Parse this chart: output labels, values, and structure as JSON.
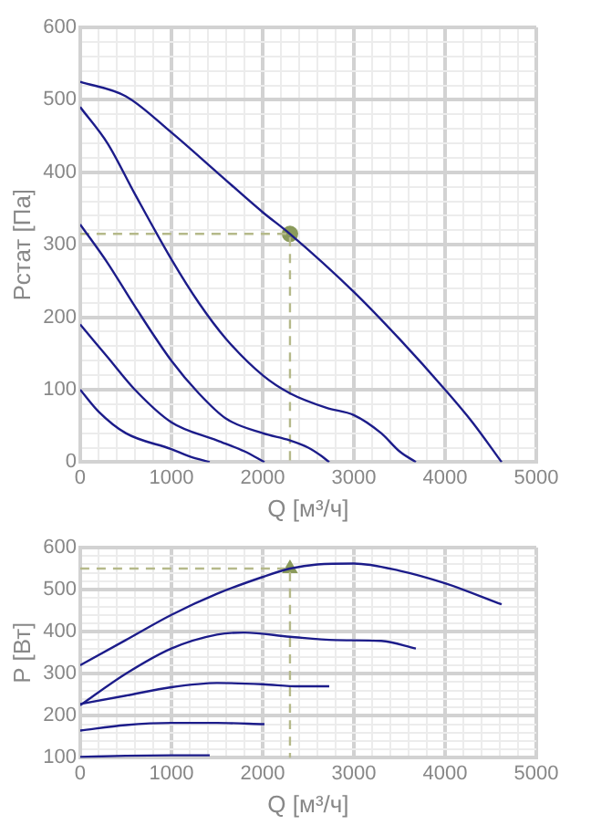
{
  "chart_data": [
    {
      "type": "line",
      "xlabel": "Q [м³/ч]",
      "ylabel": "Рстат [Па]",
      "xlim": [
        0,
        5000
      ],
      "ylim": [
        0,
        600
      ],
      "xticks": [
        0,
        {
          "value": 200,
          "label": null
        },
        {
          "value": 400,
          "label": null
        },
        {
          "value": 600,
          "label": null
        },
        {
          "value": 800,
          "label": null
        },
        1000,
        {
          "value": 1200,
          "label": null
        },
        {
          "value": 1400,
          "label": null
        },
        {
          "value": 1600,
          "label": null
        },
        {
          "value": 1800,
          "label": null
        },
        2000,
        {
          "value": 2200,
          "label": null
        },
        {
          "value": 2400,
          "label": null
        },
        {
          "value": 2600,
          "label": null
        },
        {
          "value": 2800,
          "label": null
        },
        3000,
        {
          "value": 3200,
          "label": null
        },
        {
          "value": 3400,
          "label": null
        },
        {
          "value": 3600,
          "label": null
        },
        {
          "value": 3800,
          "label": null
        },
        4000,
        {
          "value": 4200,
          "label": null
        },
        {
          "value": 4400,
          "label": null
        },
        {
          "value": 4600,
          "label": null
        },
        {
          "value": 4800,
          "label": null
        },
        5000
      ],
      "yticks": [
        0,
        {
          "value": 20,
          "label": null
        },
        {
          "value": 40,
          "label": null
        },
        {
          "value": 60,
          "label": null
        },
        {
          "value": 80,
          "label": null
        },
        100,
        {
          "value": 120,
          "label": null
        },
        {
          "value": 140,
          "label": null
        },
        {
          "value": 160,
          "label": null
        },
        {
          "value": 180,
          "label": null
        },
        200,
        {
          "value": 220,
          "label": null
        },
        {
          "value": 240,
          "label": null
        },
        {
          "value": 260,
          "label": null
        },
        {
          "value": 280,
          "label": null
        },
        300,
        {
          "value": 320,
          "label": null
        },
        {
          "value": 340,
          "label": null
        },
        {
          "value": 360,
          "label": null
        },
        {
          "value": 380,
          "label": null
        },
        400,
        {
          "value": 420,
          "label": null
        },
        {
          "value": 440,
          "label": null
        },
        {
          "value": 460,
          "label": null
        },
        {
          "value": 480,
          "label": null
        },
        500,
        {
          "value": 520,
          "label": null
        },
        {
          "value": 540,
          "label": null
        },
        {
          "value": 560,
          "label": null
        },
        {
          "value": 580,
          "label": null
        },
        600
      ],
      "grid": true,
      "legend": false,
      "marker": "none",
      "line_style": "solid",
      "series": [
        {
          "type": "line",
          "color": "#1c1c8a",
          "x": [
            0,
            500,
            1000,
            1500,
            2000,
            2300,
            3000,
            3500,
            4000,
            4300,
            4620
          ],
          "values": [
            525,
            505,
            455,
            400,
            345,
            315,
            235,
            170,
            100,
            55,
            0
          ]
        },
        {
          "type": "line",
          "color": "#1c1c8a",
          "x": [
            0,
            300,
            600,
            1000,
            1300,
            1600,
            2000,
            2300,
            2700,
            3000,
            3300,
            3500,
            3680
          ],
          "values": [
            490,
            440,
            370,
            280,
            220,
            170,
            120,
            95,
            75,
            65,
            40,
            15,
            0
          ]
        },
        {
          "type": "line",
          "color": "#1c1c8a",
          "x": [
            0,
            300,
            600,
            1000,
            1300,
            1600,
            2000,
            2300,
            2500,
            2650,
            2730
          ],
          "values": [
            328,
            275,
            215,
            140,
            95,
            60,
            40,
            30,
            20,
            8,
            0
          ]
        },
        {
          "type": "line",
          "color": "#1c1c8a",
          "x": [
            0,
            300,
            600,
            1000,
            1500,
            1800,
            2020
          ],
          "values": [
            190,
            145,
            100,
            55,
            30,
            15,
            0
          ]
        },
        {
          "type": "line",
          "color": "#1c1c8a",
          "x": [
            0,
            200,
            500,
            1000,
            1200,
            1420
          ],
          "values": [
            100,
            70,
            40,
            18,
            8,
            0
          ]
        },
        {
          "type": "line",
          "color": "#b5b98a",
          "line_style": "dashed",
          "x": [
            0,
            2300,
            2300
          ],
          "values": [
            315,
            315,
            0
          ]
        },
        {
          "type": "scatter",
          "color": "#8a9a5b",
          "marker": "circle",
          "x": [
            2300
          ],
          "values": [
            315
          ]
        }
      ]
    },
    {
      "type": "line",
      "xlabel": "Q [м³/ч]",
      "ylabel": "P [Вт]",
      "xlim": [
        0,
        5000
      ],
      "ylim": [
        100,
        600
      ],
      "xticks": [
        0,
        {
          "value": 200,
          "label": null
        },
        {
          "value": 400,
          "label": null
        },
        {
          "value": 600,
          "label": null
        },
        {
          "value": 800,
          "label": null
        },
        1000,
        {
          "value": 1200,
          "label": null
        },
        {
          "value": 1400,
          "label": null
        },
        {
          "value": 1600,
          "label": null
        },
        {
          "value": 1800,
          "label": null
        },
        2000,
        {
          "value": 2200,
          "label": null
        },
        {
          "value": 2400,
          "label": null
        },
        {
          "value": 2600,
          "label": null
        },
        {
          "value": 2800,
          "label": null
        },
        3000,
        {
          "value": 3200,
          "label": null
        },
        {
          "value": 3400,
          "label": null
        },
        {
          "value": 3600,
          "label": null
        },
        {
          "value": 3800,
          "label": null
        },
        4000,
        {
          "value": 4200,
          "label": null
        },
        {
          "value": 4400,
          "label": null
        },
        {
          "value": 4600,
          "label": null
        },
        {
          "value": 4800,
          "label": null
        },
        5000
      ],
      "yticks": [
        100,
        {
          "value": 120,
          "label": null
        },
        {
          "value": 140,
          "label": null
        },
        {
          "value": 160,
          "label": null
        },
        {
          "value": 180,
          "label": null
        },
        200,
        {
          "value": 220,
          "label": null
        },
        {
          "value": 240,
          "label": null
        },
        {
          "value": 260,
          "label": null
        },
        {
          "value": 280,
          "label": null
        },
        300,
        {
          "value": 320,
          "label": null
        },
        {
          "value": 340,
          "label": null
        },
        {
          "value": 360,
          "label": null
        },
        {
          "value": 380,
          "label": null
        },
        400,
        {
          "value": 420,
          "label": null
        },
        {
          "value": 440,
          "label": null
        },
        {
          "value": 460,
          "label": null
        },
        {
          "value": 480,
          "label": null
        },
        500,
        {
          "value": 520,
          "label": null
        },
        {
          "value": 540,
          "label": null
        },
        {
          "value": 560,
          "label": null
        },
        {
          "value": 580,
          "label": null
        },
        600
      ],
      "grid": true,
      "legend": false,
      "marker": "none",
      "line_style": "solid",
      "series": [
        {
          "type": "line",
          "color": "#1c1c8a",
          "x": [
            0,
            500,
            1000,
            1500,
            2000,
            2300,
            2600,
            3000,
            3500,
            4000,
            4620
          ],
          "values": [
            320,
            380,
            440,
            490,
            530,
            550,
            560,
            562,
            545,
            515,
            465
          ]
        },
        {
          "type": "line",
          "color": "#1c1c8a",
          "x": [
            0,
            500,
            1000,
            1500,
            1800,
            2300,
            2800,
            3300,
            3680
          ],
          "values": [
            225,
            300,
            360,
            393,
            398,
            388,
            380,
            378,
            360
          ]
        },
        {
          "type": "line",
          "color": "#1c1c8a",
          "x": [
            0,
            500,
            1000,
            1500,
            2000,
            2400,
            2730
          ],
          "values": [
            228,
            248,
            268,
            278,
            275,
            270,
            270
          ]
        },
        {
          "type": "line",
          "color": "#1c1c8a",
          "x": [
            0,
            500,
            1000,
            1500,
            2020
          ],
          "values": [
            165,
            178,
            183,
            183,
            180
          ]
        },
        {
          "type": "line",
          "color": "#1c1c8a",
          "x": [
            0,
            500,
            1000,
            1420
          ],
          "values": [
            102,
            105,
            106,
            106
          ]
        },
        {
          "type": "line",
          "color": "#b5b98a",
          "line_style": "dashed",
          "x": [
            0,
            2300,
            2300
          ],
          "values": [
            550,
            550,
            100
          ]
        },
        {
          "type": "scatter",
          "color": "#8a9a5b",
          "marker": "triangle",
          "x": [
            2300
          ],
          "values": [
            550
          ]
        }
      ]
    }
  ]
}
